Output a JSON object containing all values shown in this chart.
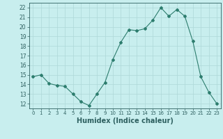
{
  "x": [
    0,
    1,
    2,
    3,
    4,
    5,
    6,
    7,
    8,
    9,
    10,
    11,
    12,
    13,
    14,
    15,
    16,
    17,
    18,
    19,
    20,
    21,
    22,
    23
  ],
  "y": [
    14.8,
    15.0,
    14.1,
    13.9,
    13.8,
    13.0,
    12.2,
    11.8,
    13.0,
    14.2,
    16.6,
    18.4,
    19.7,
    19.6,
    19.8,
    20.7,
    22.0,
    21.1,
    21.8,
    21.1,
    18.5,
    14.8,
    13.2,
    12.0
  ],
  "line_color": "#2d7d6e",
  "marker": "D",
  "marker_size": 2,
  "bg_color": "#c8eeee",
  "grid_color": "#aed8d8",
  "tick_label_color": "#2d5f5f",
  "xlabel": "Humidex (Indice chaleur)",
  "xlabel_fontsize": 7,
  "ylabel_ticks": [
    12,
    13,
    14,
    15,
    16,
    17,
    18,
    19,
    20,
    21,
    22
  ],
  "xlim": [
    -0.5,
    23.5
  ],
  "ylim": [
    11.5,
    22.5
  ]
}
